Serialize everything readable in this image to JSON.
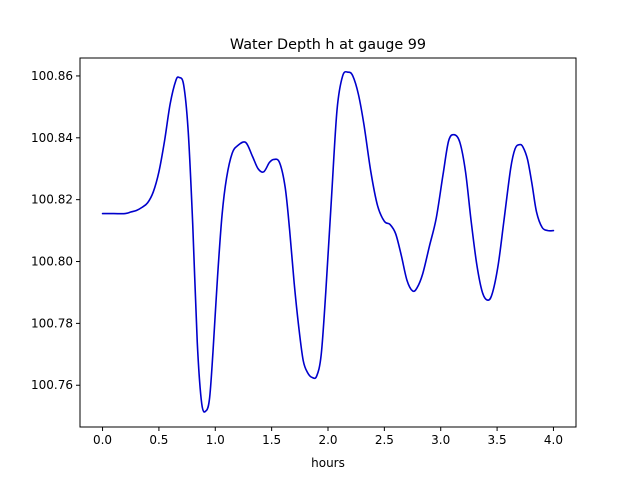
{
  "chart_data": {
    "type": "line",
    "title": "Water Depth h at gauge 99",
    "xlabel": "hours",
    "ylabel": "",
    "xlim": [
      -0.2,
      4.2
    ],
    "ylim": [
      100.7465,
      100.8658
    ],
    "xticks": [
      {
        "value": 0.0,
        "label": "0.0"
      },
      {
        "value": 0.5,
        "label": "0.5"
      },
      {
        "value": 1.0,
        "label": "1.0"
      },
      {
        "value": 1.5,
        "label": "1.5"
      },
      {
        "value": 2.0,
        "label": "2.0"
      },
      {
        "value": 2.5,
        "label": "2.5"
      },
      {
        "value": 3.0,
        "label": "3.0"
      },
      {
        "value": 3.5,
        "label": "3.5"
      },
      {
        "value": 4.0,
        "label": "4.0"
      }
    ],
    "yticks": [
      {
        "value": 100.76,
        "label": "100.76"
      },
      {
        "value": 100.78,
        "label": "100.78"
      },
      {
        "value": 100.8,
        "label": "100.80"
      },
      {
        "value": 100.82,
        "label": "100.82"
      },
      {
        "value": 100.84,
        "label": "100.84"
      },
      {
        "value": 100.86,
        "label": "100.86"
      }
    ],
    "grid": false,
    "line_color": "#0000cc",
    "series": [
      {
        "x": [
          0.0,
          0.1,
          0.2,
          0.25,
          0.3,
          0.35,
          0.4,
          0.45,
          0.5,
          0.55,
          0.6,
          0.65,
          0.68,
          0.72,
          0.76,
          0.8,
          0.84,
          0.88,
          0.92,
          0.95,
          0.98,
          1.02,
          1.06,
          1.1,
          1.15,
          1.2,
          1.27,
          1.33,
          1.38,
          1.43,
          1.48,
          1.52,
          1.57,
          1.62,
          1.66,
          1.7,
          1.74,
          1.78,
          1.82,
          1.86,
          1.9,
          1.94,
          1.98,
          2.03,
          2.08,
          2.13,
          2.18,
          2.22,
          2.27,
          2.32,
          2.38,
          2.44,
          2.5,
          2.55,
          2.6,
          2.65,
          2.7,
          2.75,
          2.79,
          2.84,
          2.9,
          2.96,
          3.02,
          3.07,
          3.12,
          3.17,
          3.22,
          3.27,
          3.32,
          3.37,
          3.42,
          3.46,
          3.51,
          3.56,
          3.62,
          3.66,
          3.7,
          3.73,
          3.77,
          3.81,
          3.85,
          3.9,
          3.95,
          4.0
        ],
        "y": [
          100.8155,
          100.8155,
          100.8155,
          100.816,
          100.8165,
          100.8175,
          100.819,
          100.8225,
          100.829,
          100.839,
          100.851,
          100.8585,
          100.8595,
          100.857,
          100.842,
          100.812,
          100.774,
          100.754,
          100.7518,
          100.756,
          100.771,
          100.795,
          100.815,
          100.827,
          100.835,
          100.8375,
          100.8385,
          100.834,
          100.83,
          100.829,
          100.832,
          100.833,
          100.832,
          100.824,
          100.81,
          100.793,
          100.779,
          100.768,
          100.764,
          100.7625,
          100.763,
          100.77,
          100.79,
          100.82,
          100.849,
          100.86,
          100.8612,
          100.86,
          100.854,
          100.844,
          100.829,
          100.818,
          100.813,
          100.812,
          100.809,
          100.802,
          100.794,
          100.7905,
          100.7915,
          100.796,
          100.805,
          100.814,
          100.828,
          100.839,
          100.841,
          100.8385,
          100.829,
          100.813,
          100.799,
          100.79,
          100.7875,
          100.79,
          100.799,
          100.813,
          100.83,
          100.8365,
          100.8378,
          100.837,
          100.833,
          100.825,
          100.816,
          100.811,
          100.81,
          100.81
        ]
      }
    ]
  }
}
